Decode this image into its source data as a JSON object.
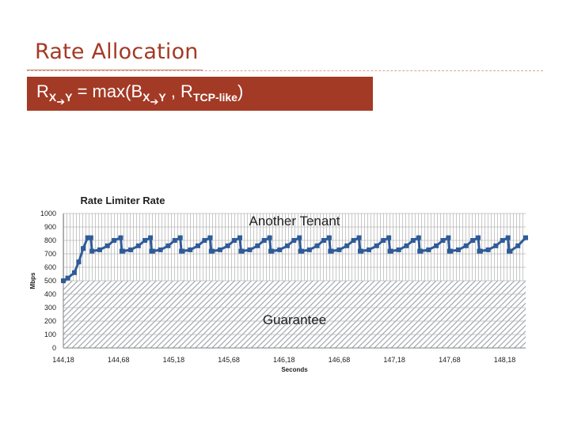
{
  "slide": {
    "title": "Rate Allocation",
    "formula": {
      "r": "R",
      "x_to_y_1": "X",
      "arrow_1": "➔",
      "y_1": "Y",
      "eq": " = max(B",
      "x_to_y_2": "X",
      "arrow_2": "➔",
      "y_2": "Y",
      "comma": " , R",
      "tcp_like": "TCP-like",
      "close": ")"
    }
  },
  "colors": {
    "accent": "#a33a25",
    "series": "#2f5b98",
    "hatch": "#9aa0a8",
    "grid": "#b8b8b8"
  },
  "chart_data": {
    "type": "line",
    "title": "Rate Limiter Rate",
    "xlabel": "Seconds",
    "ylabel": "Mbps",
    "xlim": [
      144.18,
      148.37
    ],
    "ylim": [
      0,
      1000
    ],
    "yticks": [
      0,
      100,
      200,
      300,
      400,
      500,
      600,
      700,
      800,
      900,
      1000
    ],
    "xtick_labels": [
      "144,18",
      "144,68",
      "145,18",
      "145,68",
      "146,18",
      "146,68",
      "147,18",
      "147,68",
      "148,18"
    ],
    "xtick_values": [
      144.18,
      144.68,
      145.18,
      145.68,
      146.18,
      146.68,
      147.18,
      147.68,
      148.18
    ],
    "grid": true,
    "regions": [
      {
        "label": "Guarantee",
        "from": 0,
        "to": 500,
        "pattern": "diagonal-hatch"
      },
      {
        "label": "Another Tenant",
        "from": 500,
        "to": 1000,
        "pattern": "vertical-lines"
      }
    ],
    "series": [
      {
        "x": [
          144.18,
          144.22,
          144.28,
          144.32,
          144.36,
          144.4,
          144.43,
          144.44,
          144.51,
          144.58,
          144.64,
          144.7,
          144.71,
          144.72,
          144.79,
          144.86,
          144.92,
          144.97,
          144.98,
          144.99,
          145.06,
          145.13,
          145.19,
          145.24,
          145.25,
          145.26,
          145.33,
          145.4,
          145.46,
          145.51,
          145.52,
          145.53,
          145.6,
          145.67,
          145.73,
          145.78,
          145.79,
          145.8,
          145.87,
          145.94,
          146.0,
          146.05,
          146.06,
          146.07,
          146.14,
          146.21,
          146.27,
          146.32,
          146.33,
          146.34,
          146.41,
          146.48,
          146.54,
          146.59,
          146.6,
          146.61,
          146.68,
          146.75,
          146.81,
          146.86,
          146.87,
          146.88,
          146.95,
          147.02,
          147.08,
          147.13,
          147.14,
          147.15,
          147.22,
          147.29,
          147.35,
          147.4,
          147.41,
          147.42,
          147.49,
          147.56,
          147.62,
          147.67,
          147.68,
          147.69,
          147.76,
          147.83,
          147.89,
          147.94,
          147.95,
          147.96,
          148.03,
          148.1,
          148.16,
          148.21,
          148.22,
          148.23,
          148.3,
          148.37
        ],
        "y": [
          500,
          520,
          560,
          640,
          740,
          820,
          820,
          720,
          730,
          760,
          800,
          820,
          720,
          720,
          730,
          760,
          800,
          820,
          720,
          720,
          730,
          760,
          800,
          820,
          720,
          720,
          730,
          760,
          800,
          820,
          720,
          720,
          730,
          760,
          800,
          820,
          720,
          720,
          730,
          760,
          800,
          820,
          720,
          720,
          730,
          760,
          800,
          820,
          720,
          720,
          730,
          760,
          800,
          820,
          720,
          720,
          730,
          760,
          800,
          820,
          720,
          720,
          730,
          760,
          800,
          820,
          720,
          720,
          730,
          760,
          800,
          820,
          720,
          720,
          730,
          760,
          800,
          820,
          720,
          720,
          730,
          760,
          800,
          820,
          720,
          720,
          730,
          760,
          800,
          820,
          720,
          720,
          760,
          820
        ]
      }
    ]
  }
}
